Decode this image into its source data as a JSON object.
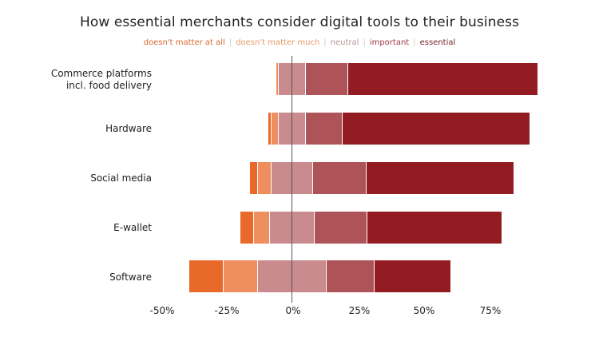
{
  "chart_data": {
    "type": "bar",
    "orientation": "horizontal",
    "stacked": "diverging",
    "title": "How essential merchants consider digital tools to their business",
    "xlabel": "",
    "ylabel": "",
    "xlim": [
      -50,
      90
    ],
    "x_ticks": [
      "-50%",
      "-25%",
      "0%",
      "25%",
      "50%",
      "75%"
    ],
    "x_tick_values": [
      -50,
      -25,
      0,
      25,
      50,
      75
    ],
    "grid": false,
    "legend_position": "top",
    "categories": [
      "Commerce platforms incl. food delivery",
      "Hardware",
      "Social media",
      "E-wallet",
      "Software"
    ],
    "series": [
      {
        "name": "doesn't matter at all",
        "color": "#E8692A",
        "values": [
          0,
          1,
          3,
          5,
          13
        ]
      },
      {
        "name": "doesn't matter much",
        "color": "#EF8E5E",
        "values": [
          1,
          3,
          5,
          6,
          13
        ]
      },
      {
        "name": "neutral",
        "color": "#C98B8E",
        "values": [
          10,
          10,
          16,
          17,
          26
        ]
      },
      {
        "name": "important",
        "color": "#AE5458",
        "values": [
          16,
          14,
          20,
          20,
          18
        ]
      },
      {
        "name": "essential",
        "color": "#921C22",
        "values": [
          72,
          71,
          56,
          51,
          29
        ]
      }
    ]
  },
  "title": "How essential merchants consider digital tools to their business",
  "legend": [
    {
      "label": "doesn't matter at all",
      "color": "#D9682E"
    },
    {
      "label": "doesn't matter much",
      "color": "#E99A6C"
    },
    {
      "label": "neutral",
      "color": "#B89598"
    },
    {
      "label": "important",
      "color": "#9C3A4A"
    },
    {
      "label": "essential",
      "color": "#7A1F26"
    }
  ],
  "rows": [
    {
      "label_line1": "Commerce platforms",
      "label_line2": "incl. food delivery"
    },
    {
      "label_line1": "Hardware",
      "label_line2": ""
    },
    {
      "label_line1": "Social media",
      "label_line2": ""
    },
    {
      "label_line1": "E-wallet",
      "label_line2": ""
    },
    {
      "label_line1": "Software",
      "label_line2": ""
    }
  ],
  "axis": {
    "ticks": [
      "-50%",
      "-25%",
      "0%",
      "25%",
      "50%",
      "75%"
    ]
  }
}
